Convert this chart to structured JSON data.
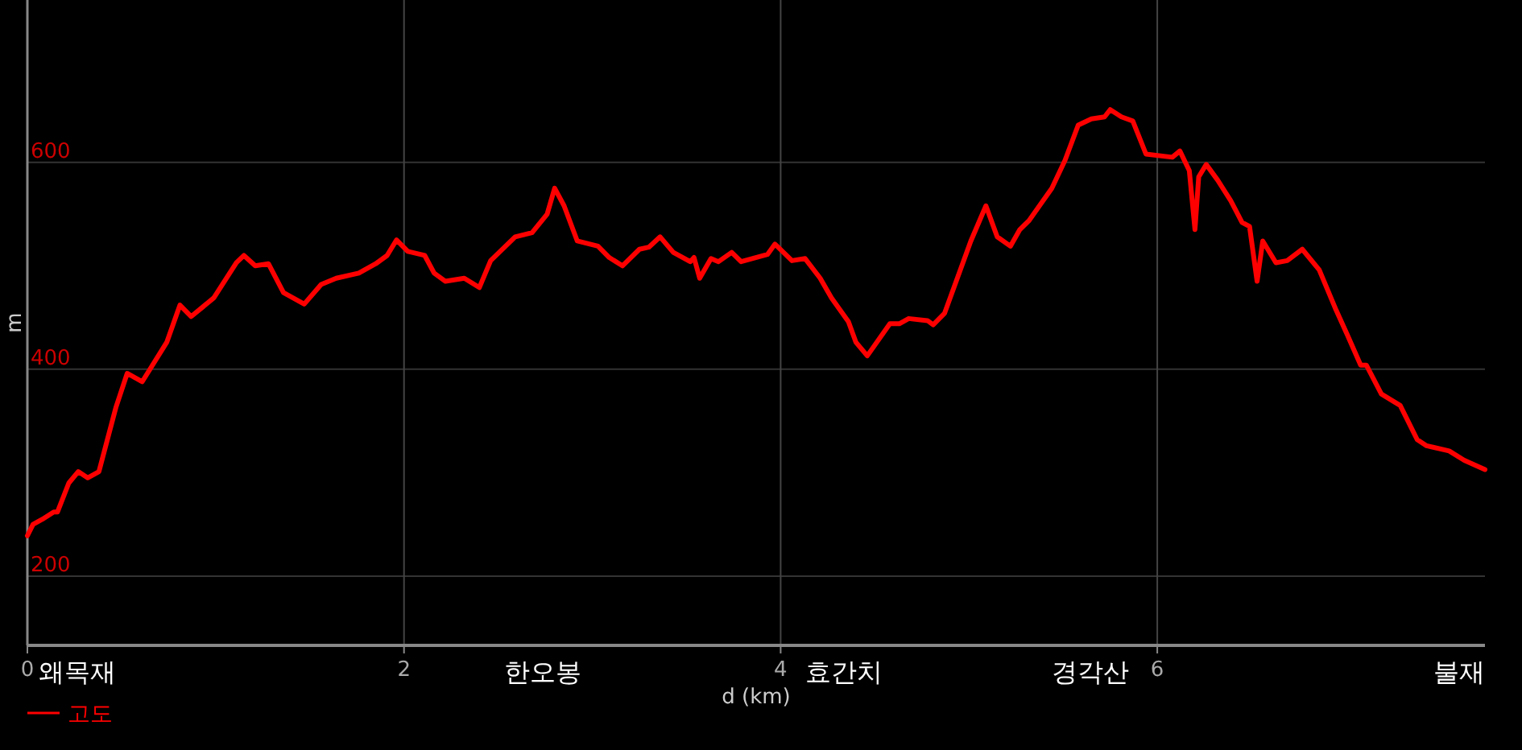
{
  "chart_data": {
    "type": "line",
    "xlabel": "d (km)",
    "ylabel": "m",
    "xlim": [
      0,
      7.74
    ],
    "ylim": [
      133,
      757
    ],
    "xticks": [
      0,
      2,
      4,
      6
    ],
    "yticks": [
      200,
      400,
      600
    ],
    "grid": true,
    "legend": "bottom left",
    "marker": "none",
    "line_style": "solid",
    "annotations": [
      "왜목재",
      "한오봉",
      "효간치",
      "경각산",
      "불재"
    ],
    "series": [
      {
        "name": "고도",
        "color": "#ff0000",
        "x": [
          0,
          0.03,
          0.08,
          0.14,
          0.16,
          0.22,
          0.27,
          0.32,
          0.38,
          0.47,
          0.53,
          0.61,
          0.74,
          0.81,
          0.87,
          0.99,
          1.11,
          1.15,
          1.21,
          1.28,
          1.36,
          1.47,
          1.56,
          1.64,
          1.76,
          1.85,
          1.91,
          1.96,
          2.02,
          2.11,
          2.16,
          2.22,
          2.32,
          2.4,
          2.46,
          2.59,
          2.68,
          2.76,
          2.8,
          2.85,
          2.92,
          3.03,
          3.09,
          3.16,
          3.25,
          3.3,
          3.36,
          3.43,
          3.52,
          3.54,
          3.57,
          3.63,
          3.67,
          3.74,
          3.79,
          3.93,
          3.97,
          4.06,
          4.13,
          4.21,
          4.27,
          4.36,
          4.4,
          4.46,
          4.58,
          4.63,
          4.68,
          4.78,
          4.81,
          4.87,
          5.01,
          5.09,
          5.15,
          5.22,
          5.27,
          5.32,
          5.44,
          5.51,
          5.58,
          5.65,
          5.72,
          5.75,
          5.81,
          5.87,
          5.94,
          6.08,
          6.12,
          6.17,
          6.2,
          6.22,
          6.26,
          6.32,
          6.39,
          6.45,
          6.49,
          6.53,
          6.56,
          6.63,
          6.69,
          6.77,
          6.86,
          6.95,
          7.01,
          7.08,
          7.11,
          7.19,
          7.29,
          7.38,
          7.43,
          7.55,
          7.63,
          7.74
        ],
        "values": [
          239,
          250,
          255,
          262,
          262,
          290,
          301,
          295,
          301,
          363,
          396,
          388,
          426,
          462,
          451,
          469,
          503,
          510,
          500,
          502,
          474,
          463,
          482,
          488,
          493,
          502,
          510,
          525,
          514,
          510,
          493,
          485,
          488,
          479,
          505,
          528,
          532,
          550,
          575,
          558,
          524,
          519,
          508,
          500,
          516,
          518,
          528,
          513,
          504,
          508,
          488,
          507,
          504,
          513,
          504,
          511,
          521,
          505,
          507,
          488,
          469,
          446,
          426,
          413,
          444,
          444,
          449,
          447,
          443,
          454,
          524,
          558,
          528,
          519,
          535,
          544,
          575,
          602,
          636,
          642,
          644,
          651,
          644,
          640,
          608,
          605,
          611,
          592,
          535,
          586,
          598,
          583,
          563,
          542,
          538,
          485,
          524,
          503,
          505,
          516,
          496,
          457,
          433,
          404,
          404,
          376,
          365,
          332,
          326,
          321,
          312,
          303
        ]
      }
    ]
  }
}
